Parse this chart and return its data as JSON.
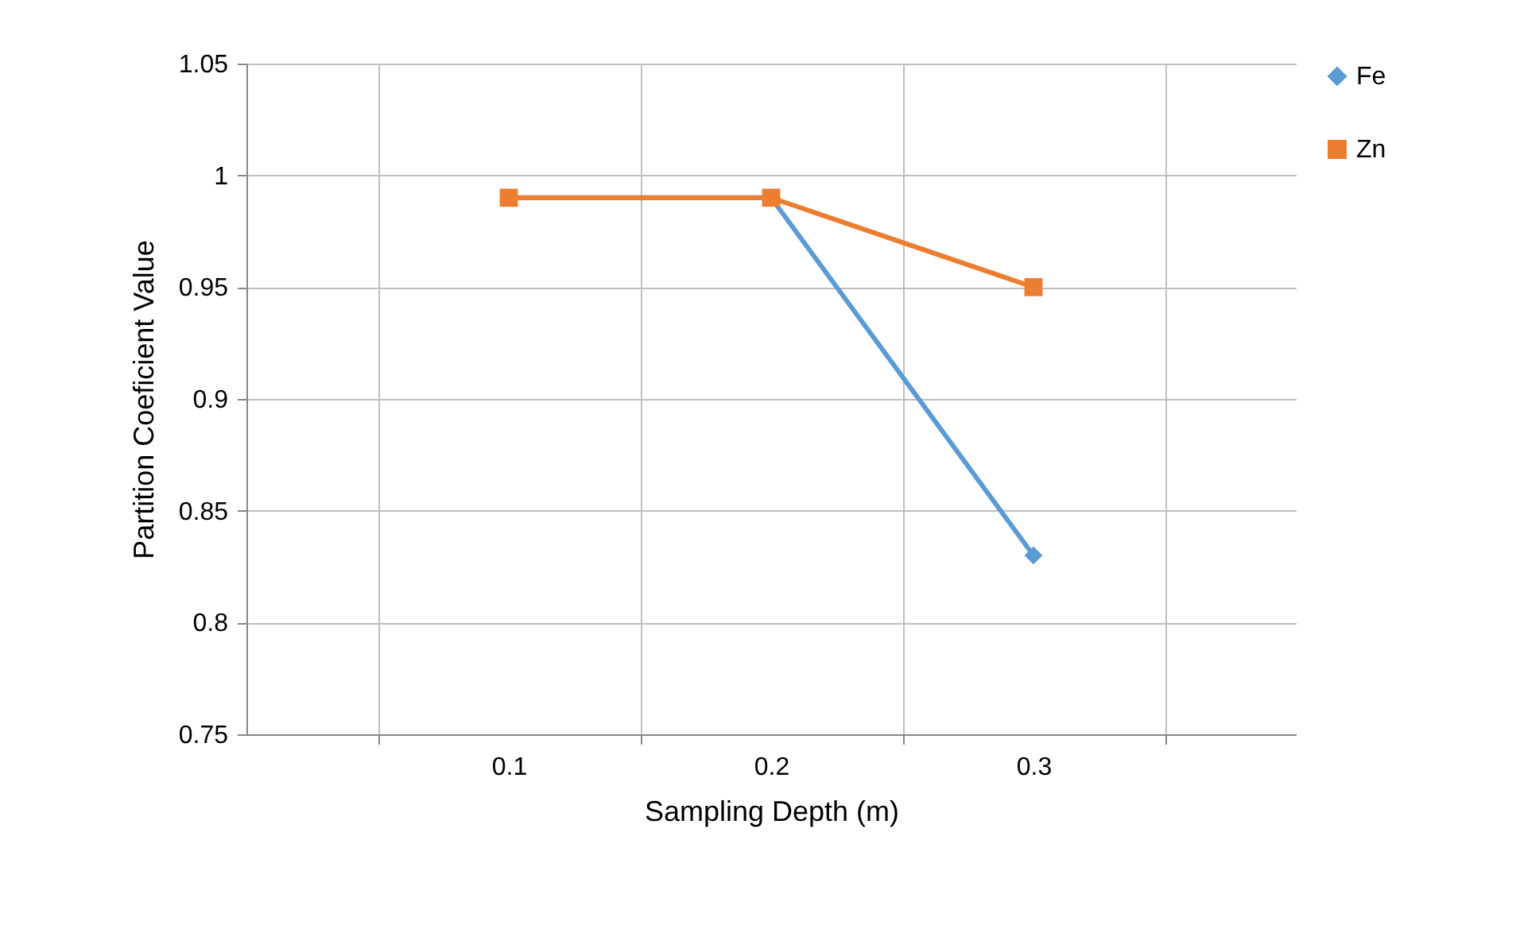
{
  "chart_data": {
    "type": "line",
    "xlabel": "Sampling Depth (m)",
    "ylabel": "Partition Coeficient Value",
    "categories": [
      "0.1",
      "0.2",
      "0.3"
    ],
    "series": [
      {
        "name": "Fe",
        "color": "#5b9bd5",
        "marker": "diamond",
        "values": [
          0.99,
          0.99,
          0.83
        ]
      },
      {
        "name": "Zn",
        "color": "#ed7d31",
        "marker": "square",
        "values": [
          0.99,
          0.99,
          0.95
        ]
      }
    ],
    "ylim": [
      0.75,
      1.05
    ],
    "yticks": [
      0.75,
      0.8,
      0.85,
      0.9,
      0.95,
      1,
      1.05
    ],
    "grid": true,
    "legend": "right"
  }
}
